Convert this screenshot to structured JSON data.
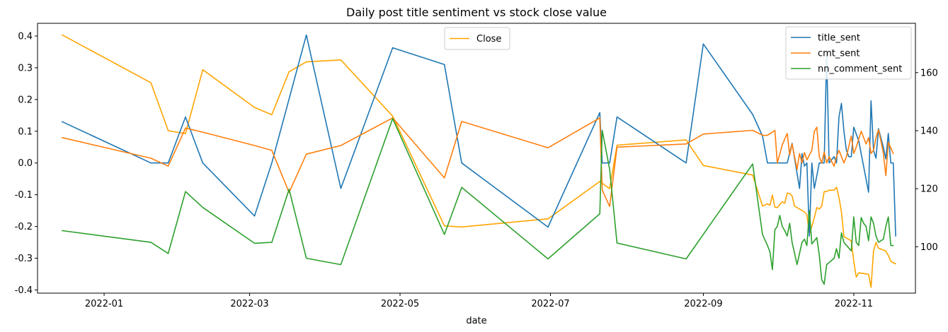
{
  "chart_data": {
    "type": "line",
    "title": "Daily post title sentiment vs stock close value",
    "xlabel": "date",
    "ylabel": "",
    "ylabel_right": "",
    "x_ticks": [
      "2022-01",
      "2022-03",
      "2022-05",
      "2022-07",
      "2022-09",
      "2022-11"
    ],
    "x_tick_dates": [
      "2022-01-01",
      "2022-03-01",
      "2022-05-01",
      "2022-07-01",
      "2022-09-01",
      "2022-11-01"
    ],
    "xlim": [
      "2021-12-05",
      "2022-11-26"
    ],
    "y_ticks": [
      "-0.4",
      "-0.3",
      "-0.2",
      "-0.1",
      "0.0",
      "0.1",
      "0.2",
      "0.3",
      "0.4"
    ],
    "y_tick_values": [
      -0.4,
      -0.3,
      -0.2,
      -0.1,
      0.0,
      0.1,
      0.2,
      0.3,
      0.4
    ],
    "ylim": [
      -0.41,
      0.44
    ],
    "y2_ticks": [
      "100",
      "120",
      "140",
      "160"
    ],
    "y2_tick_values": [
      100,
      120,
      140,
      160
    ],
    "y2lim": [
      84,
      177
    ],
    "grid": false,
    "legend_left": {
      "placement": "top-center",
      "entries": [
        "Close"
      ]
    },
    "legend_right": {
      "placement": "top-right",
      "entries": [
        "title_sent",
        "cmt_sent",
        "nn_comment_sent"
      ]
    },
    "series": [
      {
        "name": "title_sent",
        "axis": "left",
        "color": "#1f77b4",
        "points": [
          [
            "2021-12-15",
            0.13
          ],
          [
            "2022-01-20",
            0.0
          ],
          [
            "2022-01-27",
            0.0
          ],
          [
            "2022-02-03",
            0.145
          ],
          [
            "2022-02-10",
            0.0
          ],
          [
            "2022-03-03",
            -0.167
          ],
          [
            "2022-03-10",
            0.0
          ],
          [
            "2022-03-24",
            0.403
          ],
          [
            "2022-04-07",
            -0.08
          ],
          [
            "2022-04-28",
            0.363
          ],
          [
            "2022-05-19",
            0.31
          ],
          [
            "2022-05-26",
            0.0
          ],
          [
            "2022-06-30",
            -0.202
          ],
          [
            "2022-07-21",
            0.159
          ],
          [
            "2022-07-22",
            0.0
          ],
          [
            "2022-07-25",
            0.0
          ],
          [
            "2022-07-28",
            0.145
          ],
          [
            "2022-08-25",
            0.0
          ],
          [
            "2022-09-01",
            0.375
          ],
          [
            "2022-09-21",
            0.153
          ],
          [
            "2022-09-25",
            0.085
          ],
          [
            "2022-09-27",
            0.0
          ],
          [
            "2022-10-03",
            0.0
          ],
          [
            "2022-10-05",
            0.0
          ],
          [
            "2022-10-07",
            0.062
          ],
          [
            "2022-10-10",
            -0.08
          ],
          [
            "2022-10-11",
            0.03
          ],
          [
            "2022-10-12",
            -0.01
          ],
          [
            "2022-10-13",
            0.0
          ],
          [
            "2022-10-14",
            -0.23
          ],
          [
            "2022-10-15",
            0.0
          ],
          [
            "2022-10-16",
            -0.08
          ],
          [
            "2022-10-18",
            0.0
          ],
          [
            "2022-10-20",
            0.0
          ],
          [
            "2022-10-21",
            0.343
          ],
          [
            "2022-10-22",
            0.0
          ],
          [
            "2022-10-23",
            0.01
          ],
          [
            "2022-10-24",
            0.02
          ],
          [
            "2022-10-25",
            0.0
          ],
          [
            "2022-10-26",
            0.145
          ],
          [
            "2022-10-27",
            0.188
          ],
          [
            "2022-10-28",
            0.1
          ],
          [
            "2022-10-29",
            0.04
          ],
          [
            "2022-10-30",
            0.02
          ],
          [
            "2022-10-31",
            0.02
          ],
          [
            "2022-11-01",
            0.113
          ],
          [
            "2022-11-03",
            0.07
          ],
          [
            "2022-11-07",
            -0.092
          ],
          [
            "2022-11-08",
            0.196
          ],
          [
            "2022-11-09",
            0.04
          ],
          [
            "2022-11-10",
            0.015
          ],
          [
            "2022-11-11",
            0.108
          ],
          [
            "2022-11-13",
            0.05
          ],
          [
            "2022-11-14",
            0.013
          ],
          [
            "2022-11-15",
            0.093
          ],
          [
            "2022-11-16",
            0.0
          ],
          [
            "2022-11-17",
            0.0
          ],
          [
            "2022-11-18",
            -0.23
          ]
        ]
      },
      {
        "name": "cmt_sent",
        "axis": "left",
        "color": "#ff7f0e",
        "points": [
          [
            "2021-12-15",
            0.08
          ],
          [
            "2022-01-20",
            0.015
          ],
          [
            "2022-01-27",
            -0.01
          ],
          [
            "2022-02-03",
            0.11
          ],
          [
            "2022-02-10",
            0.097
          ],
          [
            "2022-03-03",
            0.055
          ],
          [
            "2022-03-10",
            0.04
          ],
          [
            "2022-03-17",
            -0.093
          ],
          [
            "2022-03-24",
            0.028
          ],
          [
            "2022-04-07",
            0.055
          ],
          [
            "2022-04-28",
            0.142
          ],
          [
            "2022-05-19",
            -0.047
          ],
          [
            "2022-05-26",
            0.131
          ],
          [
            "2022-06-30",
            0.048
          ],
          [
            "2022-07-21",
            0.142
          ],
          [
            "2022-07-22",
            -0.085
          ],
          [
            "2022-07-25",
            -0.137
          ],
          [
            "2022-07-28",
            0.05
          ],
          [
            "2022-08-25",
            0.06
          ],
          [
            "2022-09-01",
            0.091
          ],
          [
            "2022-09-21",
            0.103
          ],
          [
            "2022-09-25",
            0.087
          ],
          [
            "2022-09-27",
            0.087
          ],
          [
            "2022-09-29",
            0.097
          ],
          [
            "2022-09-30",
            0.103
          ],
          [
            "2022-10-01",
            0.0
          ],
          [
            "2022-10-03",
            0.057
          ],
          [
            "2022-10-05",
            0.093
          ],
          [
            "2022-10-06",
            0.025
          ],
          [
            "2022-10-07",
            0.06
          ],
          [
            "2022-10-09",
            -0.02
          ],
          [
            "2022-10-10",
            0.03
          ],
          [
            "2022-10-11",
            0.0
          ],
          [
            "2022-10-12",
            0.033
          ],
          [
            "2022-10-13",
            0.01
          ],
          [
            "2022-10-15",
            0.04
          ],
          [
            "2022-10-16",
            0.1
          ],
          [
            "2022-10-17",
            0.113
          ],
          [
            "2022-10-18",
            0.02
          ],
          [
            "2022-10-19",
            0.0
          ],
          [
            "2022-10-20",
            0.035
          ],
          [
            "2022-10-21",
            0.0
          ],
          [
            "2022-10-22",
            0.02
          ],
          [
            "2022-10-24",
            -0.01
          ],
          [
            "2022-10-25",
            0.02
          ],
          [
            "2022-10-26",
            0.04
          ],
          [
            "2022-10-27",
            0.02
          ],
          [
            "2022-10-28",
            0.0
          ],
          [
            "2022-10-29",
            0.02
          ],
          [
            "2022-10-31",
            0.085
          ],
          [
            "2022-11-01",
            0.03
          ],
          [
            "2022-11-02",
            0.05
          ],
          [
            "2022-11-04",
            0.1
          ],
          [
            "2022-11-06",
            0.06
          ],
          [
            "2022-11-07",
            0.08
          ],
          [
            "2022-11-08",
            0.03
          ],
          [
            "2022-11-09",
            0.04
          ],
          [
            "2022-11-10",
            0.08
          ],
          [
            "2022-11-11",
            0.105
          ],
          [
            "2022-11-12",
            0.07
          ],
          [
            "2022-11-13",
            0.03
          ],
          [
            "2022-11-14",
            -0.04
          ],
          [
            "2022-11-15",
            0.065
          ],
          [
            "2022-11-17",
            0.03
          ]
        ]
      },
      {
        "name": "nn_comment_sent",
        "axis": "left",
        "color": "#2ca02c",
        "points": [
          [
            "2021-12-15",
            -0.213
          ],
          [
            "2022-01-20",
            -0.25
          ],
          [
            "2022-01-27",
            -0.285
          ],
          [
            "2022-02-03",
            -0.09
          ],
          [
            "2022-02-10",
            -0.14
          ],
          [
            "2022-03-03",
            -0.253
          ],
          [
            "2022-03-10",
            -0.25
          ],
          [
            "2022-03-17",
            -0.083
          ],
          [
            "2022-03-24",
            -0.3
          ],
          [
            "2022-04-07",
            -0.32
          ],
          [
            "2022-04-28",
            0.14
          ],
          [
            "2022-05-19",
            -0.225
          ],
          [
            "2022-05-26",
            -0.077
          ],
          [
            "2022-06-30",
            -0.302
          ],
          [
            "2022-07-21",
            -0.16
          ],
          [
            "2022-07-22",
            0.103
          ],
          [
            "2022-07-25",
            -0.02
          ],
          [
            "2022-07-28",
            -0.252
          ],
          [
            "2022-08-25",
            -0.302
          ],
          [
            "2022-09-21",
            -0.003
          ],
          [
            "2022-09-25",
            -0.225
          ],
          [
            "2022-09-27",
            -0.26
          ],
          [
            "2022-09-28",
            -0.28
          ],
          [
            "2022-09-29",
            -0.336
          ],
          [
            "2022-09-30",
            -0.21
          ],
          [
            "2022-10-01",
            -0.2
          ],
          [
            "2022-10-02",
            -0.165
          ],
          [
            "2022-10-03",
            -0.2
          ],
          [
            "2022-10-04",
            -0.213
          ],
          [
            "2022-10-05",
            -0.23
          ],
          [
            "2022-10-06",
            -0.19
          ],
          [
            "2022-10-07",
            -0.25
          ],
          [
            "2022-10-09",
            -0.32
          ],
          [
            "2022-10-11",
            -0.25
          ],
          [
            "2022-10-12",
            -0.24
          ],
          [
            "2022-10-13",
            -0.26
          ],
          [
            "2022-10-14",
            -0.15
          ],
          [
            "2022-10-15",
            -0.255
          ],
          [
            "2022-10-17",
            -0.235
          ],
          [
            "2022-10-18",
            -0.29
          ],
          [
            "2022-10-19",
            -0.368
          ],
          [
            "2022-10-20",
            -0.382
          ],
          [
            "2022-10-21",
            -0.32
          ],
          [
            "2022-10-24",
            -0.3
          ],
          [
            "2022-10-25",
            -0.27
          ],
          [
            "2022-10-26",
            -0.3
          ],
          [
            "2022-10-27",
            -0.22
          ],
          [
            "2022-10-28",
            -0.25
          ],
          [
            "2022-10-31",
            -0.277
          ],
          [
            "2022-11-01",
            -0.17
          ],
          [
            "2022-11-02",
            -0.25
          ],
          [
            "2022-11-03",
            -0.26
          ],
          [
            "2022-11-04",
            -0.172
          ],
          [
            "2022-11-05",
            -0.19
          ],
          [
            "2022-11-06",
            -0.2
          ],
          [
            "2022-11-07",
            -0.245
          ],
          [
            "2022-11-08",
            -0.17
          ],
          [
            "2022-11-09",
            -0.19
          ],
          [
            "2022-11-10",
            -0.23
          ],
          [
            "2022-11-11",
            -0.25
          ],
          [
            "2022-11-13",
            -0.24
          ],
          [
            "2022-11-14",
            -0.2
          ],
          [
            "2022-11-15",
            -0.17
          ],
          [
            "2022-11-16",
            -0.26
          ],
          [
            "2022-11-17",
            -0.26
          ]
        ]
      },
      {
        "name": "Close",
        "axis": "right",
        "color": "#ffa500",
        "points": [
          [
            "2021-12-15",
            173.0
          ],
          [
            "2022-01-20",
            156.5
          ],
          [
            "2022-01-27",
            140.0
          ],
          [
            "2022-02-03",
            139.0
          ],
          [
            "2022-02-10",
            161.0
          ],
          [
            "2022-03-03",
            148.0
          ],
          [
            "2022-03-10",
            145.5
          ],
          [
            "2022-03-17",
            160.3
          ],
          [
            "2022-03-24",
            163.7
          ],
          [
            "2022-04-07",
            164.4
          ],
          [
            "2022-04-28",
            145.0
          ],
          [
            "2022-05-19",
            107.2
          ],
          [
            "2022-05-26",
            106.8
          ],
          [
            "2022-06-30",
            109.6
          ],
          [
            "2022-07-21",
            122.5
          ],
          [
            "2022-07-25",
            120.0
          ],
          [
            "2022-07-28",
            135.0
          ],
          [
            "2022-08-25",
            136.8
          ],
          [
            "2022-09-01",
            128.0
          ],
          [
            "2022-09-21",
            124.7
          ],
          [
            "2022-09-25",
            114.0
          ],
          [
            "2022-09-27",
            114.8
          ],
          [
            "2022-09-28",
            114.3
          ],
          [
            "2022-09-29",
            117.8
          ],
          [
            "2022-09-30",
            113.6
          ],
          [
            "2022-10-01",
            113.5
          ],
          [
            "2022-10-03",
            115.5
          ],
          [
            "2022-10-04",
            115.0
          ],
          [
            "2022-10-05",
            118.5
          ],
          [
            "2022-10-06",
            118.3
          ],
          [
            "2022-10-07",
            117.5
          ],
          [
            "2022-10-08",
            114.0
          ],
          [
            "2022-10-10",
            113.0
          ],
          [
            "2022-10-11",
            112.5
          ],
          [
            "2022-10-12",
            112.0
          ],
          [
            "2022-10-13",
            111.0
          ],
          [
            "2022-10-14",
            104.5
          ],
          [
            "2022-10-15",
            107.0
          ],
          [
            "2022-10-16",
            110.0
          ],
          [
            "2022-10-17",
            113.5
          ],
          [
            "2022-10-18",
            113.0
          ],
          [
            "2022-10-19",
            114.0
          ],
          [
            "2022-10-20",
            119.0
          ],
          [
            "2022-10-21",
            119.0
          ],
          [
            "2022-10-22",
            119.5
          ],
          [
            "2022-10-24",
            119.5
          ],
          [
            "2022-10-25",
            120.5
          ],
          [
            "2022-10-26",
            117.0
          ],
          [
            "2022-10-27",
            112.0
          ],
          [
            "2022-10-28",
            103.5
          ],
          [
            "2022-10-31",
            102.0
          ],
          [
            "2022-11-01",
            95.0
          ],
          [
            "2022-11-02",
            89.5
          ],
          [
            "2022-11-03",
            91.0
          ],
          [
            "2022-11-07",
            90.5
          ],
          [
            "2022-11-08",
            86.0
          ],
          [
            "2022-11-09",
            98.5
          ],
          [
            "2022-11-10",
            101.5
          ],
          [
            "2022-11-11",
            99.5
          ],
          [
            "2022-11-14",
            98.5
          ],
          [
            "2022-11-15",
            97.0
          ],
          [
            "2022-11-16",
            95.0
          ],
          [
            "2022-11-17",
            94.5
          ],
          [
            "2022-11-18",
            94.1
          ]
        ]
      }
    ]
  }
}
